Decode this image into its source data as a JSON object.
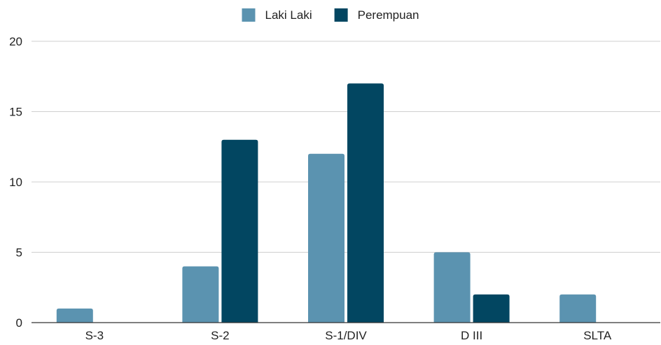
{
  "chart_data": {
    "type": "bar",
    "title": "",
    "xlabel": "",
    "ylabel": "",
    "categories": [
      "S-3",
      "S-2",
      "S-1/DIV",
      "D III",
      "SLTA"
    ],
    "series": [
      {
        "name": "Laki Laki",
        "values": [
          1,
          4,
          12,
          5,
          2
        ],
        "color": "#5b93b0"
      },
      {
        "name": "Perempuan",
        "values": [
          0,
          13,
          17,
          2,
          0
        ],
        "color": "#024661"
      }
    ],
    "ylim": [
      0,
      20
    ],
    "yticks": [
      0,
      5,
      10,
      15,
      20
    ],
    "grid": true,
    "legend": "top-center"
  }
}
